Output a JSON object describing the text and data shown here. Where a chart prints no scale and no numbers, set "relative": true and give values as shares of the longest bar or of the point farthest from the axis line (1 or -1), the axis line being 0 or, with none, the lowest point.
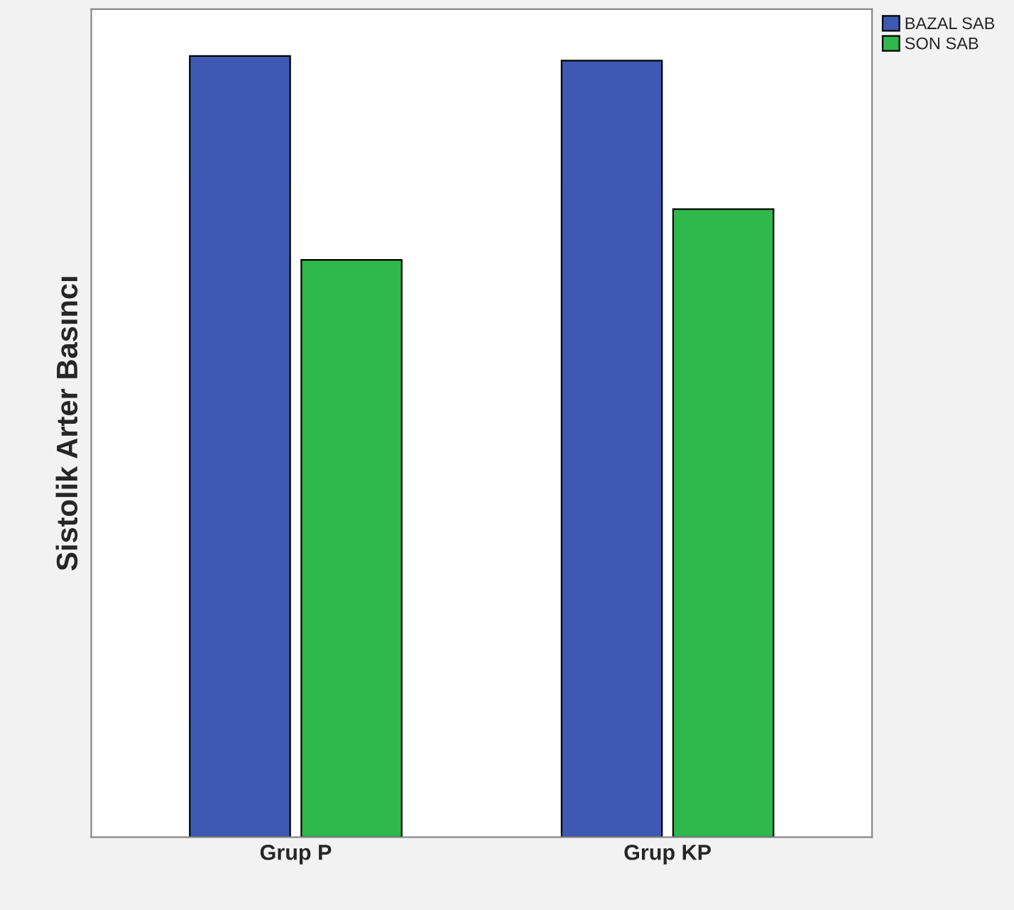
{
  "chart_data": {
    "type": "bar",
    "ylabel": "Sistolik Arter Basıncı",
    "categories": [
      "Grup P",
      "Grup KP"
    ],
    "relative": true,
    "series": [
      {
        "name": "BAZAL SAB",
        "color": "#3d59b3",
        "values": [
          1,
          0.994
        ]
      },
      {
        "name": "SON SAB",
        "color": "#2fb84c",
        "values": [
          0.739,
          0.804
        ]
      }
    ],
    "legend": "top right",
    "grid": false
  }
}
